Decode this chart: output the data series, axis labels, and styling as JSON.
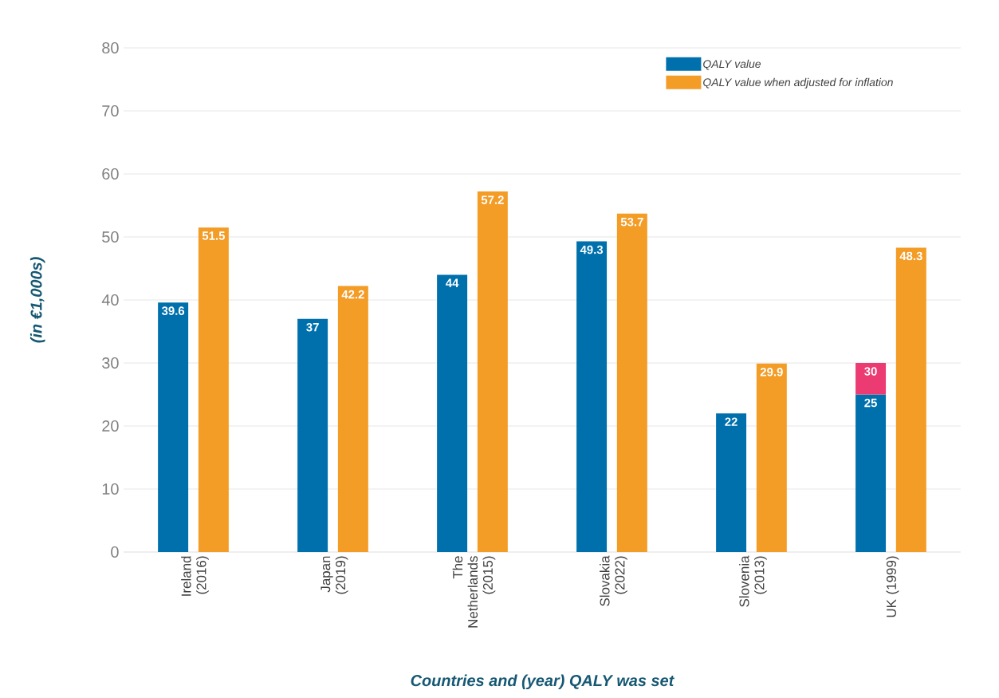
{
  "chart_data": {
    "type": "bar",
    "xlabel": "Countries and (year) QALY was set",
    "ylabel": "(in €1,000s)",
    "categories": [
      "Ireland (2016)",
      "Japan (2019)",
      "The Netherlands (2015)",
      "Slovakia (2022)",
      "Slovenia (2013)",
      "UK (1999)"
    ],
    "series": [
      {
        "name": "QALY value",
        "color": "#0070ad",
        "values": [
          39.6,
          37,
          44,
          49.3,
          22,
          25
        ]
      },
      {
        "color": "#ec3a72",
        "base": [
          null,
          null,
          null,
          null,
          null,
          25
        ],
        "values": [
          null,
          null,
          null,
          null,
          null,
          5
        ],
        "value_labels": [
          null,
          null,
          null,
          null,
          null,
          "30"
        ]
      },
      {
        "name": "QALY value when adjusted for inflation",
        "color": "#f39c26",
        "values": [
          51.5,
          42.2,
          57.2,
          53.7,
          29.9,
          48.3
        ]
      }
    ],
    "ylim": [
      0,
      80
    ],
    "yticks": [
      0,
      10,
      20,
      30,
      40,
      50,
      60,
      70,
      80
    ],
    "grid": "y",
    "legend": "top right",
    "data_labels": true
  }
}
